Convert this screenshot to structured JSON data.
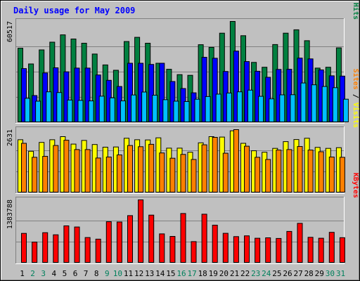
{
  "chart_data": {
    "type": "bar",
    "title": "Daily usage for May 2009",
    "categories": [
      "1",
      "2",
      "3",
      "4",
      "5",
      "6",
      "7",
      "8",
      "9",
      "10",
      "11",
      "12",
      "13",
      "14",
      "15",
      "16",
      "17",
      "18",
      "19",
      "20",
      "21",
      "22",
      "23",
      "24",
      "25",
      "26",
      "27",
      "28",
      "29",
      "30",
      "31"
    ],
    "weekend_days": [
      "2",
      "3",
      "9",
      "10",
      "16",
      "17",
      "23",
      "24",
      "30",
      "31"
    ],
    "panels": [
      {
        "name": "hits-panel",
        "max_label": "60517",
        "ymax": 60517,
        "label_parts": [
          {
            "text": "Pages",
            "color": "#00c0ff"
          },
          {
            "text": " / ",
            "color": "#000000"
          },
          {
            "text": "Files",
            "color": "#0000ff"
          },
          {
            "text": " / ",
            "color": "#000000"
          },
          {
            "text": "Hits",
            "color": "#008040"
          }
        ],
        "series": [
          {
            "name": "Hits",
            "color": "#008040",
            "values": [
              44500,
              35100,
              43500,
              48100,
              52500,
              50000,
              47500,
              41000,
              34500,
              31300,
              48500,
              51000,
              47500,
              35500,
              31900,
              28700,
              28300,
              46600,
              45000,
              53500,
              60517,
              52000,
              36000,
              33100,
              46700,
              53500,
              55500,
              49000,
              32600,
              33100,
              44700
            ]
          },
          {
            "name": "Files",
            "color": "#0000ff",
            "values": [
              32300,
              16200,
              29700,
              32800,
              30400,
              32600,
              32600,
              28500,
              25300,
              21600,
              35500,
              35500,
              34800,
              35500,
              24600,
              20400,
              17800,
              39100,
              38500,
              30600,
              42800,
              36500,
              30700,
              27100,
              31800,
              31900,
              38600,
              38100,
              31500,
              28000,
              27800
            ]
          },
          {
            "name": "Pages",
            "color": "#00c0ff",
            "values": [
              14500,
              12800,
              18400,
              18000,
              13500,
              13300,
              13000,
              15800,
              14800,
              13000,
              16500,
              18300,
              16400,
              13700,
              12800,
              12600,
              14000,
              15600,
              17000,
              17700,
              18400,
              19400,
              15700,
              14200,
              16600,
              16700,
              23700,
              22600,
              21600,
              20900,
              14000
            ]
          }
        ]
      },
      {
        "name": "visits-panel",
        "max_label": "2631",
        "ymax": 2631,
        "label_parts": [
          {
            "text": "Sites",
            "color": "#ff8000"
          },
          {
            "text": " / ",
            "color": "#000000"
          },
          {
            "text": "Visits",
            "color": "#ffff00"
          }
        ],
        "series": [
          {
            "name": "Visits",
            "color": "#ffff00",
            "values": [
              2210,
              1730,
              2100,
              2210,
              2340,
              2030,
              2180,
              2010,
              1900,
              1910,
              2270,
              2210,
              2200,
              2290,
              1860,
              1860,
              1690,
              2080,
              2340,
              2320,
              2580,
              2060,
              1750,
              1690,
              1850,
              2130,
              2220,
              2270,
              1890,
              1850,
              1880
            ]
          },
          {
            "name": "Sites",
            "color": "#ff8000",
            "values": [
              2060,
              1480,
              1520,
              1970,
              2190,
              1800,
              1800,
              1450,
              1490,
              1580,
              1970,
              1920,
              2020,
              1660,
              1440,
              1600,
              1390,
              2000,
              2310,
              1650,
              2631,
              1940,
              1480,
              1390,
              1780,
              1800,
              1930,
              1780,
              1710,
              1490,
              1480
            ]
          }
        ]
      },
      {
        "name": "kbytes-panel",
        "max_label": "1383788",
        "ymax": 1383788,
        "label_parts": [
          {
            "text": "KBytes",
            "color": "#ff0000"
          }
        ],
        "series": [
          {
            "name": "KBytes",
            "color": "#ff0000",
            "values": [
              650000,
              460000,
              665000,
              620000,
              815000,
              790000,
              560000,
              525000,
              905000,
              900000,
              1040000,
              1383788,
              1050000,
              640000,
              585000,
              1085000,
              470000,
              1070000,
              830000,
              652000,
              580000,
              596000,
              545000,
              554000,
              540000,
              694000,
              870000,
              565000,
              545000,
              674000,
              557000
            ]
          }
        ]
      }
    ]
  }
}
